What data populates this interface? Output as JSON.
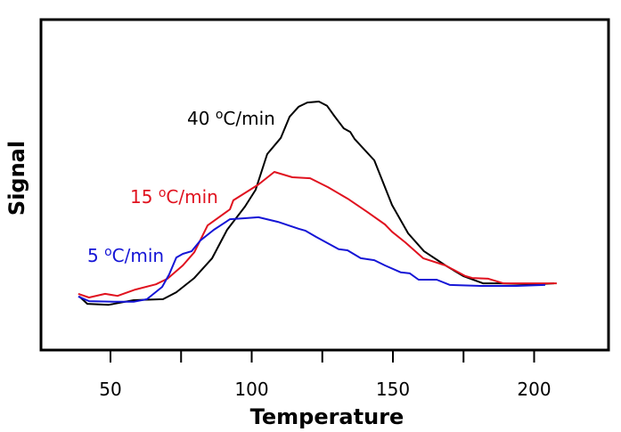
{
  "chart_data": {
    "type": "line",
    "title": "",
    "xlabel": "Temperature",
    "ylabel": "Signal",
    "xlim": [
      25,
      225
    ],
    "ylim": [
      0,
      100
    ],
    "xticks": [
      50,
      75,
      100,
      125,
      150,
      175,
      200
    ],
    "xtick_labels": [
      "50",
      "",
      "100",
      "",
      "150",
      "",
      "200"
    ],
    "y_tick_labels_shown": false,
    "grid": false,
    "legend": "inline labels",
    "series": [
      {
        "name": "40 oC/min",
        "color": "#000000",
        "x": [
          39.0,
          41.8,
          49.4,
          58.2,
          68.6,
          73.3,
          79.7,
          86.0,
          91.3,
          97.6,
          101.4,
          105.5,
          110.3,
          113.4,
          116.6,
          119.7,
          123.8,
          126.7,
          129.2,
          132.6,
          134.9,
          136.4,
          143.4,
          149.7,
          155.4,
          161.0,
          168.6,
          174.9,
          181.9,
          187.5,
          200.2,
          207.1
        ],
        "y": [
          16.2,
          14.0,
          13.7,
          15.1,
          15.4,
          17.5,
          21.8,
          27.8,
          36.4,
          43.4,
          48.5,
          59.3,
          64.2,
          70.6,
          73.6,
          74.9,
          75.2,
          73.9,
          70.9,
          67.1,
          66.0,
          63.9,
          57.4,
          43.9,
          35.3,
          29.9,
          25.6,
          22.4,
          20.2,
          20.2,
          19.9,
          20.2
        ]
      },
      {
        "name": "15 oC/min",
        "color": "#e0121f",
        "x": [
          38.6,
          42.4,
          48.1,
          52.5,
          58.8,
          66.1,
          70.2,
          75.6,
          79.7,
          84.4,
          92.3,
          93.5,
          102.4,
          108.0,
          114.4,
          120.7,
          127.0,
          134.0,
          140.9,
          147.2,
          149.7,
          154.4,
          160.7,
          168.6,
          175.6,
          178.1,
          183.8,
          189.1,
          208.0
        ],
        "y": [
          17.0,
          15.9,
          17.0,
          16.4,
          18.3,
          19.9,
          21.6,
          25.6,
          29.6,
          37.7,
          42.6,
          45.3,
          50.1,
          53.9,
          52.3,
          52.0,
          49.3,
          45.8,
          41.8,
          38.0,
          35.8,
          32.6,
          27.8,
          25.6,
          22.4,
          21.8,
          21.6,
          20.2,
          20.2
        ]
      },
      {
        "name": "5 oC/min",
        "color": "#1515d6",
        "x": [
          38.6,
          42.4,
          51.9,
          58.2,
          62.9,
          68.3,
          70.8,
          73.3,
          75.6,
          78.7,
          81.9,
          86.6,
          92.3,
          97.6,
          102.4,
          109.3,
          116.6,
          119.1,
          122.9,
          130.8,
          133.9,
          138.6,
          143.4,
          147.2,
          152.8,
          156.0,
          159.1,
          165.5,
          170.2,
          181.2,
          193.8,
          203.9
        ],
        "y": [
          16.2,
          14.8,
          14.6,
          14.6,
          15.4,
          19.1,
          22.9,
          28.0,
          29.1,
          29.9,
          33.2,
          36.4,
          39.6,
          39.9,
          40.2,
          38.8,
          36.7,
          36.1,
          34.2,
          30.5,
          30.2,
          27.8,
          27.2,
          25.6,
          23.5,
          23.2,
          21.3,
          21.3,
          19.7,
          19.4,
          19.4,
          19.7
        ]
      }
    ]
  }
}
